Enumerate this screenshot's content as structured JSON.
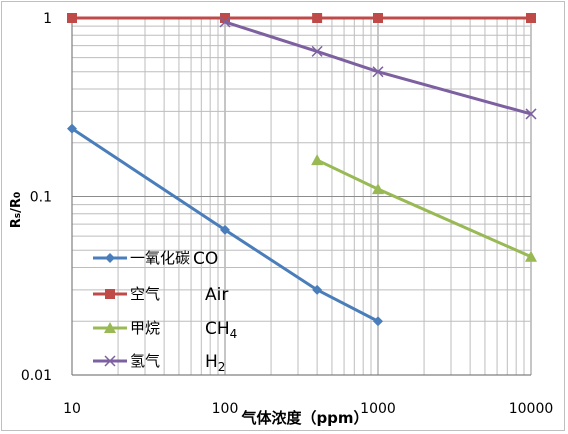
{
  "chart_data": {
    "type": "line",
    "x_scale": "log",
    "y_scale": "log",
    "xlim": [
      10,
      10000
    ],
    "ylim": [
      0.01,
      1
    ],
    "x_ticks": [
      "10",
      "100",
      "1000",
      "10000"
    ],
    "y_ticks": [
      "0.01",
      "0.1",
      "1"
    ],
    "xlabel": "气体浓度（ppm）",
    "ylabel": "Rs/R0",
    "grid": true,
    "legend_position": "bottom-left",
    "series": [
      {
        "name_cn": "一氧化碳",
        "name_en": "CO",
        "color": "#4a7ebb",
        "marker": "diamond",
        "x": [
          10,
          100,
          400,
          1000
        ],
        "y": [
          0.24,
          0.065,
          0.03,
          0.02
        ]
      },
      {
        "name_cn": "空气",
        "name_en": "Air",
        "color": "#be4b48",
        "marker": "square",
        "x": [
          10,
          100,
          400,
          1000,
          10000
        ],
        "y": [
          1,
          1,
          1,
          1,
          1
        ]
      },
      {
        "name_cn": "甲烷",
        "name_en": "CH",
        "name_sub": "4",
        "color": "#98b954",
        "marker": "triangle",
        "x": [
          400,
          1000,
          10000
        ],
        "y": [
          0.16,
          0.11,
          0.046
        ]
      },
      {
        "name_cn": "氢气",
        "name_en": "H",
        "name_sub": "2",
        "color": "#7d60a0",
        "marker": "x",
        "x": [
          100,
          400,
          1000,
          10000
        ],
        "y": [
          0.95,
          0.65,
          0.5,
          0.29
        ]
      }
    ]
  }
}
